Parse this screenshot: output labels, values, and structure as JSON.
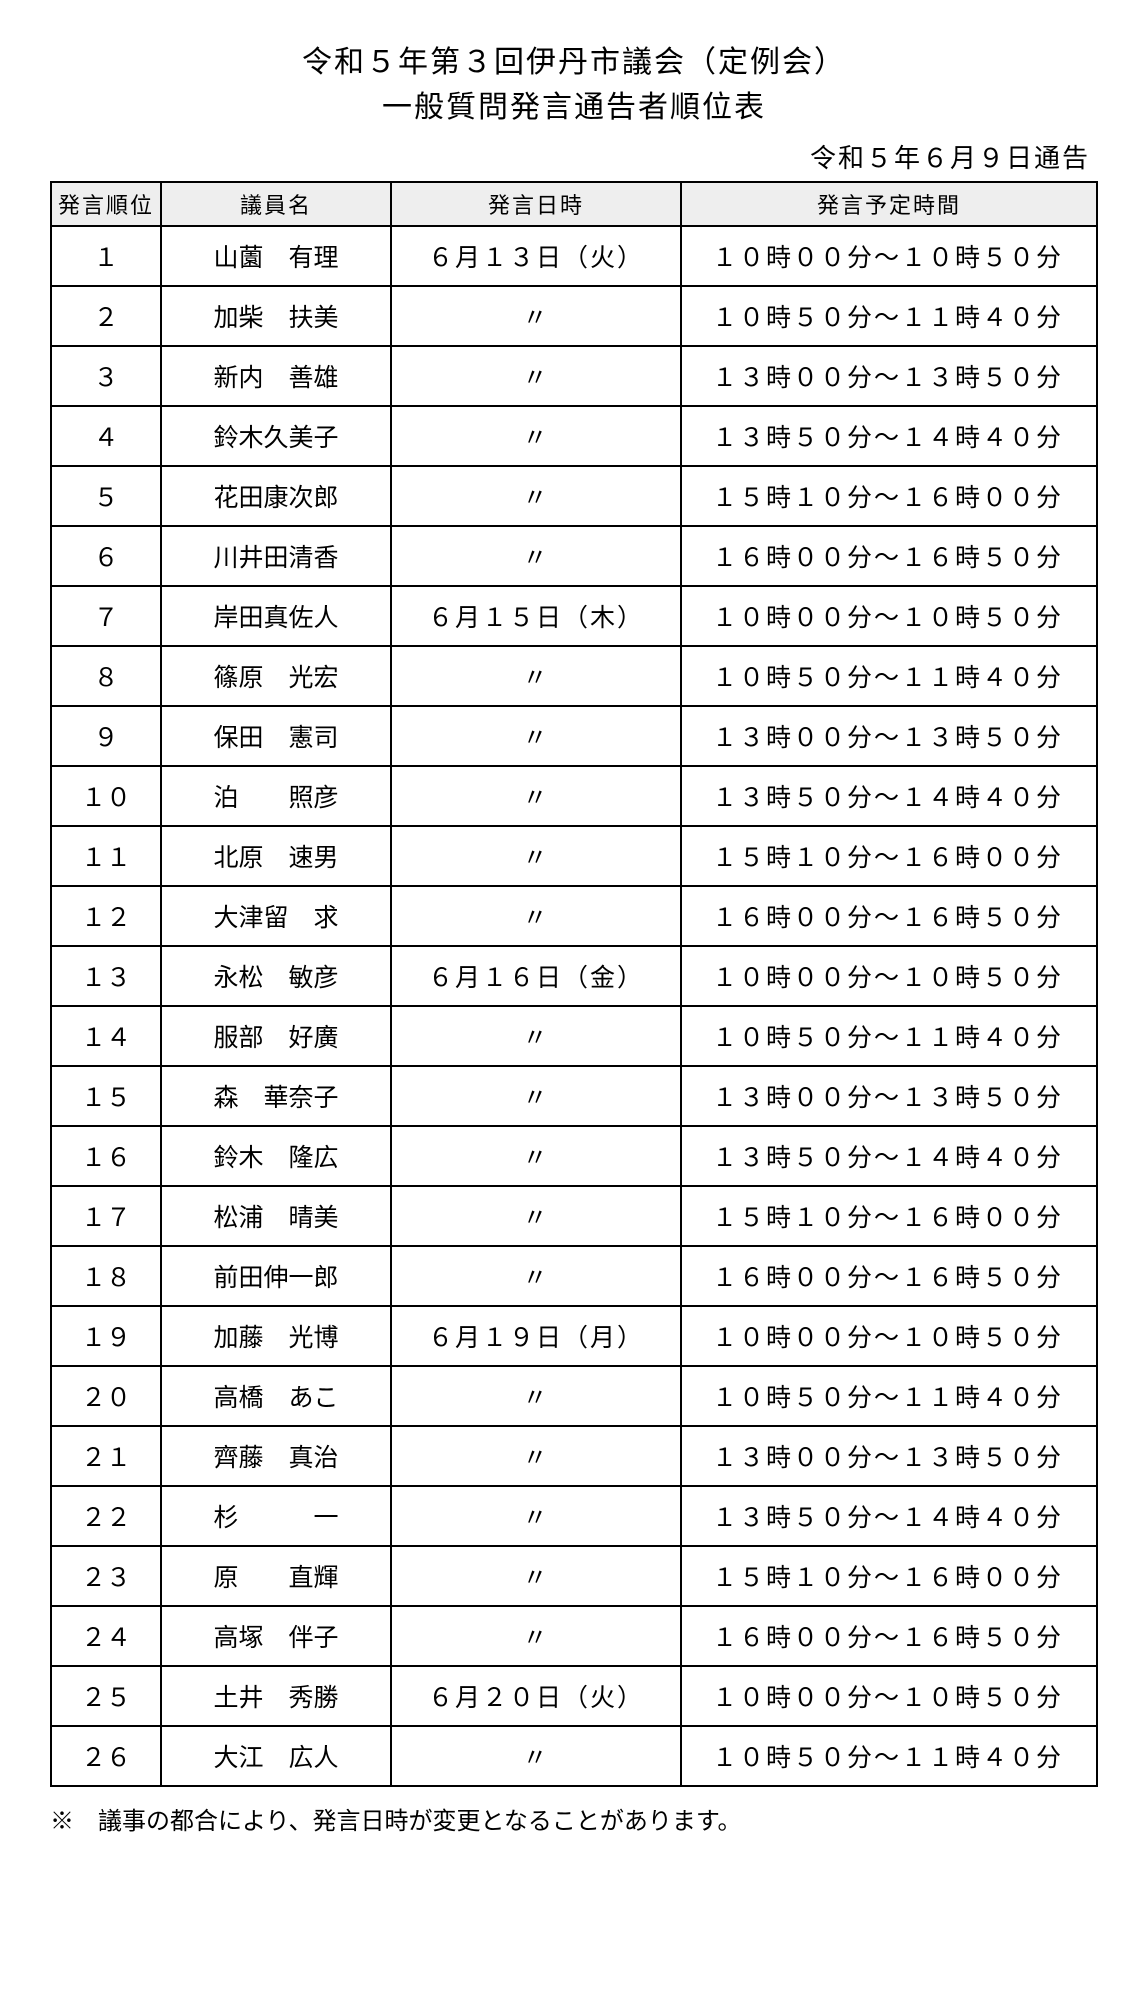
{
  "title_line1": "令和５年第３回伊丹市議会（定例会）",
  "title_line2": "一般質問発言通告者順位表",
  "notice_date": "令和５年６月９日通告",
  "columns": [
    "発言順位",
    "議員名",
    "発言日時",
    "発言予定時間"
  ],
  "rows": [
    {
      "order": "１",
      "name": "山薗　有理",
      "date": "６月１３日（火）",
      "time": "１０時００分～１０時５０分"
    },
    {
      "order": "２",
      "name": "加柴　扶美",
      "date": "〃",
      "time": "１０時５０分～１１時４０分"
    },
    {
      "order": "３",
      "name": "新内　善雄",
      "date": "〃",
      "time": "１３時００分～１３時５０分"
    },
    {
      "order": "４",
      "name": "鈴木久美子",
      "date": "〃",
      "time": "１３時５０分～１４時４０分"
    },
    {
      "order": "５",
      "name": "花田康次郎",
      "date": "〃",
      "time": "１５時１０分～１６時００分"
    },
    {
      "order": "６",
      "name": "川井田清香",
      "date": "〃",
      "time": "１６時００分～１６時５０分"
    },
    {
      "order": "７",
      "name": "岸田真佐人",
      "date": "６月１５日（木）",
      "time": "１０時００分～１０時５０分"
    },
    {
      "order": "８",
      "name": "篠原　光宏",
      "date": "〃",
      "time": "１０時５０分～１１時４０分"
    },
    {
      "order": "９",
      "name": "保田　憲司",
      "date": "〃",
      "time": "１３時００分～１３時５０分"
    },
    {
      "order": "１０",
      "name": "泊　　照彦",
      "date": "〃",
      "time": "１３時５０分～１４時４０分"
    },
    {
      "order": "１１",
      "name": "北原　速男",
      "date": "〃",
      "time": "１５時１０分～１６時００分"
    },
    {
      "order": "１２",
      "name": "大津留　求",
      "date": "〃",
      "time": "１６時００分～１６時５０分"
    },
    {
      "order": "１３",
      "name": "永松　敏彦",
      "date": "６月１６日（金）",
      "time": "１０時００分～１０時５０分"
    },
    {
      "order": "１４",
      "name": "服部　好廣",
      "date": "〃",
      "time": "１０時５０分～１１時４０分"
    },
    {
      "order": "１５",
      "name": "森　華奈子",
      "date": "〃",
      "time": "１３時００分～１３時５０分"
    },
    {
      "order": "１６",
      "name": "鈴木　隆広",
      "date": "〃",
      "time": "１３時５０分～１４時４０分"
    },
    {
      "order": "１７",
      "name": "松浦　晴美",
      "date": "〃",
      "time": "１５時１０分～１６時００分"
    },
    {
      "order": "１８",
      "name": "前田伸一郎",
      "date": "〃",
      "time": "１６時００分～１６時５０分"
    },
    {
      "order": "１９",
      "name": "加藤　光博",
      "date": "６月１９日（月）",
      "time": "１０時００分～１０時５０分"
    },
    {
      "order": "２０",
      "name": "高橋　あこ",
      "date": "〃",
      "time": "１０時５０分～１１時４０分"
    },
    {
      "order": "２１",
      "name": "齊藤　真治",
      "date": "〃",
      "time": "１３時００分～１３時５０分"
    },
    {
      "order": "２２",
      "name": "杉　　　一",
      "date": "〃",
      "time": "１３時５０分～１４時４０分"
    },
    {
      "order": "２３",
      "name": "原　　直輝",
      "date": "〃",
      "time": "１５時１０分～１６時００分"
    },
    {
      "order": "２４",
      "name": "高塚　伴子",
      "date": "〃",
      "time": "１６時００分～１６時５０分"
    },
    {
      "order": "２５",
      "name": "土井　秀勝",
      "date": "６月２０日（火）",
      "time": "１０時００分～１０時５０分"
    },
    {
      "order": "２６",
      "name": "大江　広人",
      "date": "〃",
      "time": "１０時５０分～１１時４０分"
    }
  ],
  "footnote": "※　議事の都合により、発言日時が変更となることがあります。"
}
